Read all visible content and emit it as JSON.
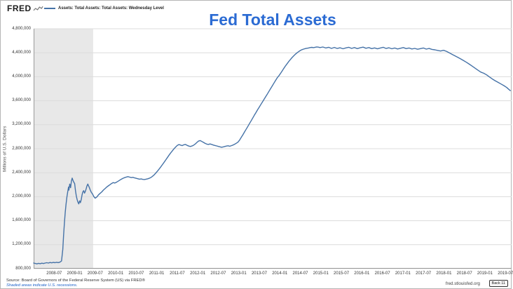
{
  "header": {
    "logo": "FRED",
    "legend_label": "Assets: Total Assets: Total Assets: Wednesday Level"
  },
  "title": "Fed Total Assets",
  "y_axis_title": "Millions of U.S. Dollars",
  "footer": {
    "source": "Source: Board of Governors of the Federal Reserve System (US) via FRED®",
    "recession_note": "Shaded areas indicate U.S. recessions.",
    "site": "fred.stlouisfed.org",
    "back_button": "Back 11"
  },
  "chart_data": {
    "type": "line",
    "title": "Fed Total Assets",
    "series_name": "Assets: Total Assets: Total Assets: Wednesday Level",
    "ylabel": "Millions of U.S. Dollars",
    "xlabel": "",
    "legend_position": "top-left",
    "grid": "horizontal",
    "xlim": [
      2008.0,
      2019.65
    ],
    "ylim": [
      800000,
      4800000
    ],
    "y_ticks": [
      800000,
      1200000,
      1600000,
      2000000,
      2400000,
      2800000,
      3200000,
      3600000,
      4000000,
      4400000,
      4800000
    ],
    "y_tick_labels": [
      "800,000",
      "1,200,000",
      "1,600,000",
      "2,000,000",
      "2,400,000",
      "2,800,000",
      "3,200,000",
      "3,600,000",
      "4,000,000",
      "4,400,000",
      "4,800,000"
    ],
    "x_ticks": [
      {
        "label": "2008-07",
        "x": 2008.5
      },
      {
        "label": "2009-01",
        "x": 2009.0
      },
      {
        "label": "2009-07",
        "x": 2009.5
      },
      {
        "label": "2010-01",
        "x": 2010.0
      },
      {
        "label": "2010-07",
        "x": 2010.5
      },
      {
        "label": "2011-01",
        "x": 2011.0
      },
      {
        "label": "2011-07",
        "x": 2011.5
      },
      {
        "label": "2012-01",
        "x": 2012.0
      },
      {
        "label": "2012-07",
        "x": 2012.5
      },
      {
        "label": "2013-01",
        "x": 2013.0
      },
      {
        "label": "2013-07",
        "x": 2013.5
      },
      {
        "label": "2014-01",
        "x": 2014.0
      },
      {
        "label": "2014-07",
        "x": 2014.5
      },
      {
        "label": "2015-01",
        "x": 2015.0
      },
      {
        "label": "2015-07",
        "x": 2015.5
      },
      {
        "label": "2016-01",
        "x": 2016.0
      },
      {
        "label": "2016-07",
        "x": 2016.5
      },
      {
        "label": "2017-01",
        "x": 2017.0
      },
      {
        "label": "2017-07",
        "x": 2017.5
      },
      {
        "label": "2018-01",
        "x": 2018.0
      },
      {
        "label": "2018-07",
        "x": 2018.5
      },
      {
        "label": "2019-01",
        "x": 2019.0
      },
      {
        "label": "2019-07",
        "x": 2019.5
      }
    ],
    "recession_bands": [
      [
        2008.0,
        2009.45
      ]
    ],
    "colors": {
      "line": "#4572a7",
      "grid": "#dcdcdc",
      "axis": "#9a9a9a",
      "recession": "#e8e8e8",
      "title": "#2b6bd3"
    },
    "points": [
      [
        2008.0,
        893000
      ],
      [
        2008.04,
        886000
      ],
      [
        2008.08,
        880000
      ],
      [
        2008.12,
        889000
      ],
      [
        2008.16,
        883000
      ],
      [
        2008.2,
        891000
      ],
      [
        2008.24,
        885000
      ],
      [
        2008.28,
        894000
      ],
      [
        2008.32,
        899000
      ],
      [
        2008.36,
        893000
      ],
      [
        2008.4,
        903000
      ],
      [
        2008.44,
        897000
      ],
      [
        2008.48,
        904000
      ],
      [
        2008.52,
        899000
      ],
      [
        2008.56,
        906000
      ],
      [
        2008.6,
        901000
      ],
      [
        2008.64,
        909000
      ],
      [
        2008.68,
        928000
      ],
      [
        2008.71,
        1120000
      ],
      [
        2008.73,
        1350000
      ],
      [
        2008.75,
        1560000
      ],
      [
        2008.77,
        1740000
      ],
      [
        2008.79,
        1870000
      ],
      [
        2008.81,
        1990000
      ],
      [
        2008.83,
        2080000
      ],
      [
        2008.85,
        2160000
      ],
      [
        2008.86,
        2110000
      ],
      [
        2008.88,
        2210000
      ],
      [
        2008.9,
        2150000
      ],
      [
        2008.92,
        2260000
      ],
      [
        2008.94,
        2310000
      ],
      [
        2008.96,
        2270000
      ],
      [
        2008.98,
        2240000
      ],
      [
        2009.0,
        2220000
      ],
      [
        2009.02,
        2100000
      ],
      [
        2009.04,
        2010000
      ],
      [
        2009.06,
        1950000
      ],
      [
        2009.08,
        1910000
      ],
      [
        2009.1,
        1880000
      ],
      [
        2009.12,
        1930000
      ],
      [
        2009.14,
        1900000
      ],
      [
        2009.16,
        1950000
      ],
      [
        2009.18,
        2030000
      ],
      [
        2009.2,
        2080000
      ],
      [
        2009.22,
        2100000
      ],
      [
        2009.24,
        2060000
      ],
      [
        2009.26,
        2090000
      ],
      [
        2009.28,
        2130000
      ],
      [
        2009.3,
        2180000
      ],
      [
        2009.32,
        2210000
      ],
      [
        2009.34,
        2180000
      ],
      [
        2009.36,
        2150000
      ],
      [
        2009.38,
        2110000
      ],
      [
        2009.4,
        2080000
      ],
      [
        2009.42,
        2060000
      ],
      [
        2009.44,
        2040000
      ],
      [
        2009.46,
        2010000
      ],
      [
        2009.48,
        1990000
      ],
      [
        2009.5,
        1975000
      ],
      [
        2009.54,
        1995000
      ],
      [
        2009.58,
        2030000
      ],
      [
        2009.62,
        2055000
      ],
      [
        2009.66,
        2080000
      ],
      [
        2009.7,
        2110000
      ],
      [
        2009.74,
        2135000
      ],
      [
        2009.78,
        2160000
      ],
      [
        2009.82,
        2180000
      ],
      [
        2009.86,
        2200000
      ],
      [
        2009.9,
        2220000
      ],
      [
        2009.94,
        2235000
      ],
      [
        2009.98,
        2228000
      ],
      [
        2010.02,
        2242000
      ],
      [
        2010.06,
        2258000
      ],
      [
        2010.1,
        2276000
      ],
      [
        2010.14,
        2292000
      ],
      [
        2010.18,
        2308000
      ],
      [
        2010.22,
        2318000
      ],
      [
        2010.26,
        2328000
      ],
      [
        2010.3,
        2334000
      ],
      [
        2010.34,
        2326000
      ],
      [
        2010.38,
        2318000
      ],
      [
        2010.42,
        2323000
      ],
      [
        2010.46,
        2314000
      ],
      [
        2010.5,
        2307000
      ],
      [
        2010.54,
        2299000
      ],
      [
        2010.58,
        2292000
      ],
      [
        2010.62,
        2296000
      ],
      [
        2010.66,
        2289000
      ],
      [
        2010.7,
        2287000
      ],
      [
        2010.74,
        2292000
      ],
      [
        2010.78,
        2298000
      ],
      [
        2010.82,
        2308000
      ],
      [
        2010.86,
        2321000
      ],
      [
        2010.9,
        2341000
      ],
      [
        2010.94,
        2366000
      ],
      [
        2010.98,
        2396000
      ],
      [
        2011.02,
        2428000
      ],
      [
        2011.06,
        2462000
      ],
      [
        2011.1,
        2498000
      ],
      [
        2011.14,
        2536000
      ],
      [
        2011.18,
        2574000
      ],
      [
        2011.22,
        2613000
      ],
      [
        2011.26,
        2652000
      ],
      [
        2011.3,
        2692000
      ],
      [
        2011.34,
        2729000
      ],
      [
        2011.38,
        2764000
      ],
      [
        2011.42,
        2798000
      ],
      [
        2011.46,
        2828000
      ],
      [
        2011.5,
        2854000
      ],
      [
        2011.54,
        2869000
      ],
      [
        2011.58,
        2861000
      ],
      [
        2011.62,
        2851000
      ],
      [
        2011.66,
        2865000
      ],
      [
        2011.7,
        2871000
      ],
      [
        2011.74,
        2856000
      ],
      [
        2011.78,
        2845000
      ],
      [
        2011.82,
        2837000
      ],
      [
        2011.86,
        2846000
      ],
      [
        2011.9,
        2858000
      ],
      [
        2011.94,
        2879000
      ],
      [
        2011.98,
        2905000
      ],
      [
        2012.02,
        2927000
      ],
      [
        2012.06,
        2936000
      ],
      [
        2012.1,
        2921000
      ],
      [
        2012.14,
        2905000
      ],
      [
        2012.18,
        2889000
      ],
      [
        2012.22,
        2877000
      ],
      [
        2012.26,
        2871000
      ],
      [
        2012.3,
        2879000
      ],
      [
        2012.34,
        2871000
      ],
      [
        2012.38,
        2861000
      ],
      [
        2012.42,
        2854000
      ],
      [
        2012.46,
        2847000
      ],
      [
        2012.5,
        2839000
      ],
      [
        2012.54,
        2831000
      ],
      [
        2012.58,
        2824000
      ],
      [
        2012.62,
        2830000
      ],
      [
        2012.66,
        2837000
      ],
      [
        2012.7,
        2844000
      ],
      [
        2012.74,
        2849000
      ],
      [
        2012.78,
        2841000
      ],
      [
        2012.82,
        2851000
      ],
      [
        2012.86,
        2861000
      ],
      [
        2012.9,
        2875000
      ],
      [
        2012.94,
        2891000
      ],
      [
        2012.98,
        2909000
      ],
      [
        2013.02,
        2944000
      ],
      [
        2013.06,
        2988000
      ],
      [
        2013.1,
        3033000
      ],
      [
        2013.14,
        3079000
      ],
      [
        2013.18,
        3124000
      ],
      [
        2013.22,
        3171000
      ],
      [
        2013.26,
        3217000
      ],
      [
        2013.3,
        3264000
      ],
      [
        2013.34,
        3311000
      ],
      [
        2013.38,
        3358000
      ],
      [
        2013.42,
        3404000
      ],
      [
        2013.46,
        3450000
      ],
      [
        2013.5,
        3495000
      ],
      [
        2013.54,
        3539000
      ],
      [
        2013.58,
        3584000
      ],
      [
        2013.62,
        3627000
      ],
      [
        2013.66,
        3671000
      ],
      [
        2013.7,
        3716000
      ],
      [
        2013.74,
        3761000
      ],
      [
        2013.78,
        3807000
      ],
      [
        2013.82,
        3851000
      ],
      [
        2013.86,
        3896000
      ],
      [
        2013.9,
        3941000
      ],
      [
        2013.94,
        3985000
      ],
      [
        2013.98,
        4019000
      ],
      [
        2014.02,
        4057000
      ],
      [
        2014.06,
        4099000
      ],
      [
        2014.1,
        4141000
      ],
      [
        2014.14,
        4181000
      ],
      [
        2014.18,
        4219000
      ],
      [
        2014.22,
        4255000
      ],
      [
        2014.26,
        4289000
      ],
      [
        2014.3,
        4321000
      ],
      [
        2014.34,
        4349000
      ],
      [
        2014.38,
        4375000
      ],
      [
        2014.42,
        4399000
      ],
      [
        2014.46,
        4419000
      ],
      [
        2014.5,
        4437000
      ],
      [
        2014.54,
        4451000
      ],
      [
        2014.58,
        4461000
      ],
      [
        2014.62,
        4469000
      ],
      [
        2014.66,
        4475000
      ],
      [
        2014.7,
        4480000
      ],
      [
        2014.74,
        4486000
      ],
      [
        2014.78,
        4490000
      ],
      [
        2014.82,
        4485000
      ],
      [
        2014.86,
        4491000
      ],
      [
        2014.9,
        4497000
      ],
      [
        2014.94,
        4493000
      ],
      [
        2014.98,
        4487000
      ],
      [
        2015.05,
        4496000
      ],
      [
        2015.12,
        4479000
      ],
      [
        2015.19,
        4491000
      ],
      [
        2015.26,
        4473000
      ],
      [
        2015.33,
        4489000
      ],
      [
        2015.4,
        4471000
      ],
      [
        2015.47,
        4483000
      ],
      [
        2015.54,
        4467000
      ],
      [
        2015.61,
        4481000
      ],
      [
        2015.68,
        4491000
      ],
      [
        2015.75,
        4473000
      ],
      [
        2015.82,
        4487000
      ],
      [
        2015.89,
        4469000
      ],
      [
        2015.96,
        4483000
      ],
      [
        2016.03,
        4493000
      ],
      [
        2016.1,
        4475000
      ],
      [
        2016.17,
        4487000
      ],
      [
        2016.24,
        4469000
      ],
      [
        2016.31,
        4481000
      ],
      [
        2016.38,
        4465000
      ],
      [
        2016.45,
        4479000
      ],
      [
        2016.52,
        4491000
      ],
      [
        2016.59,
        4471000
      ],
      [
        2016.66,
        4483000
      ],
      [
        2016.73,
        4467000
      ],
      [
        2016.8,
        4479000
      ],
      [
        2016.87,
        4463000
      ],
      [
        2016.94,
        4475000
      ],
      [
        2017.01,
        4487000
      ],
      [
        2017.08,
        4469000
      ],
      [
        2017.15,
        4479000
      ],
      [
        2017.22,
        4463000
      ],
      [
        2017.29,
        4473000
      ],
      [
        2017.36,
        4459000
      ],
      [
        2017.43,
        4469000
      ],
      [
        2017.5,
        4479000
      ],
      [
        2017.57,
        4461000
      ],
      [
        2017.64,
        4471000
      ],
      [
        2017.71,
        4456000
      ],
      [
        2017.78,
        4449000
      ],
      [
        2017.85,
        4439000
      ],
      [
        2017.92,
        4429000
      ],
      [
        2017.99,
        4441000
      ],
      [
        2018.06,
        4425000
      ],
      [
        2018.13,
        4399000
      ],
      [
        2018.2,
        4373000
      ],
      [
        2018.27,
        4349000
      ],
      [
        2018.34,
        4323000
      ],
      [
        2018.41,
        4297000
      ],
      [
        2018.48,
        4269000
      ],
      [
        2018.55,
        4241000
      ],
      [
        2018.62,
        4209000
      ],
      [
        2018.69,
        4177000
      ],
      [
        2018.76,
        4143000
      ],
      [
        2018.83,
        4109000
      ],
      [
        2018.9,
        4077000
      ],
      [
        2018.97,
        4059000
      ],
      [
        2019.04,
        4031000
      ],
      [
        2019.11,
        3997000
      ],
      [
        2019.18,
        3963000
      ],
      [
        2019.25,
        3933000
      ],
      [
        2019.32,
        3907000
      ],
      [
        2019.39,
        3879000
      ],
      [
        2019.46,
        3853000
      ],
      [
        2019.53,
        3821000
      ],
      [
        2019.58,
        3791000
      ],
      [
        2019.62,
        3769000
      ]
    ]
  }
}
